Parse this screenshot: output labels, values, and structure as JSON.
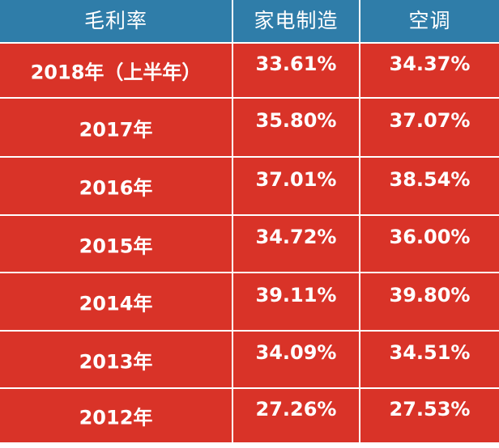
{
  "header": [
    "毛利率",
    "家电制造",
    "空调"
  ],
  "rows": [
    {
      "year": "2018年（上半年）",
      "appliance": "33.61%",
      "ac": "34.37%"
    },
    {
      "year": "2017年",
      "appliance": "35.80%",
      "ac": "37.07%"
    },
    {
      "year": "2016年",
      "appliance": "37.01%",
      "ac": "38.54%"
    },
    {
      "year": "2015年",
      "appliance": "34.72%",
      "ac": "36.00%"
    },
    {
      "year": "2014年",
      "appliance": "39.11%",
      "ac": "39.80%"
    },
    {
      "year": "2013年",
      "appliance": "34.09%",
      "ac": "34.51%"
    },
    {
      "year": "2012年",
      "appliance": "27.26%",
      "ac": "27.53%"
    }
  ],
  "colors": {
    "header_bg": "#2f7da9",
    "row_bg": "#d93328",
    "text": "#ffffff",
    "grid": "#ffffff"
  }
}
